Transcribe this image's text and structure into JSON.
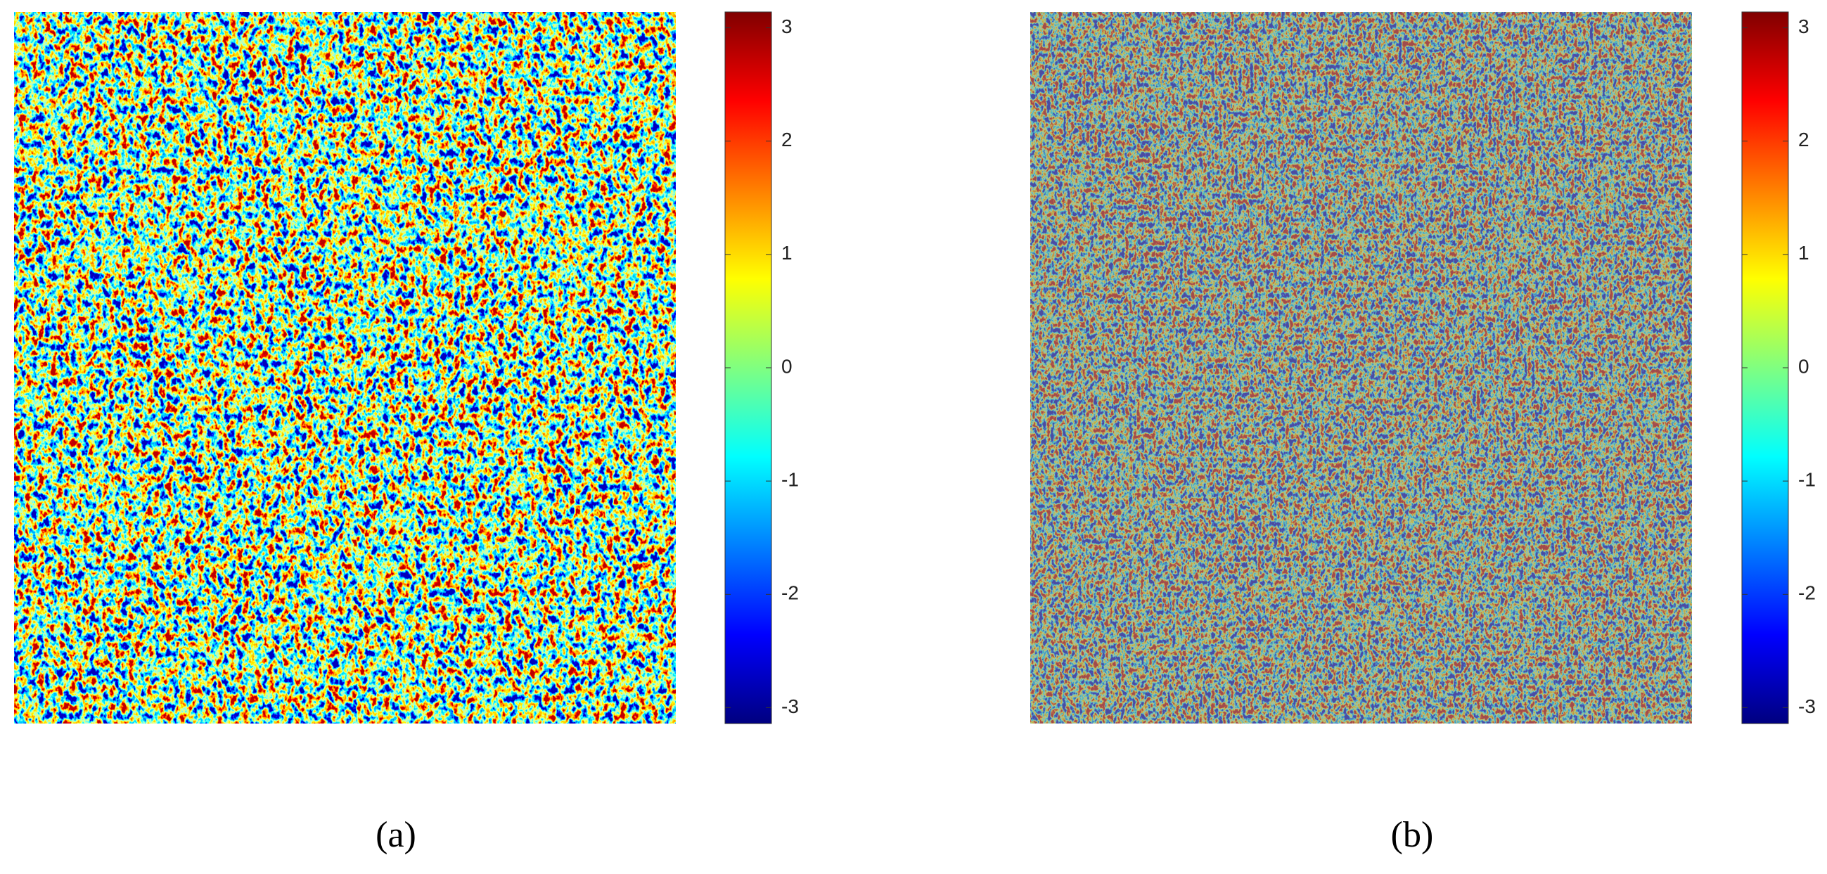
{
  "chart_data": [
    {
      "type": "heatmap",
      "subtitle": "(a)",
      "colormap": "jet",
      "clim": [
        -3.14,
        3.14
      ],
      "cticks": [
        -3,
        -2,
        -1,
        0,
        1,
        2,
        3
      ],
      "gray_overlay": false
    },
    {
      "type": "heatmap",
      "subtitle": "(b)",
      "colormap": "jet",
      "clim": [
        -3.14,
        3.14
      ],
      "cticks": [
        -3,
        -2,
        -1,
        0,
        1,
        2,
        3
      ],
      "gray_overlay": true
    }
  ]
}
